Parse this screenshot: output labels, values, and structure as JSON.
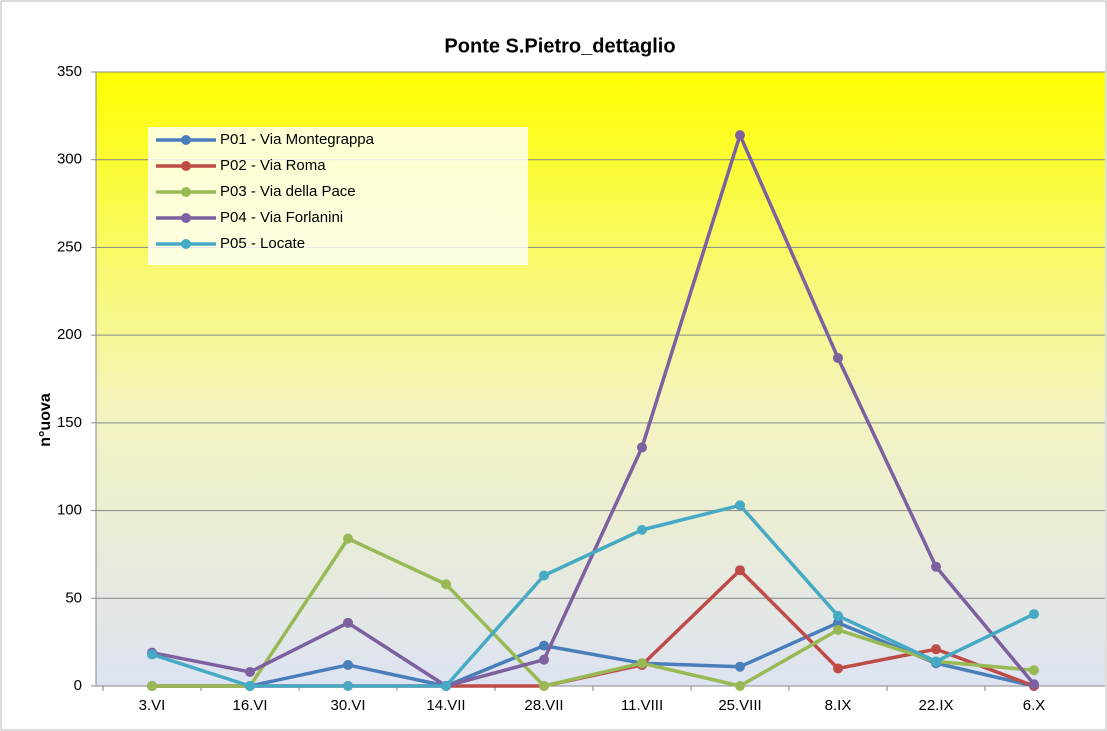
{
  "chart_data": {
    "type": "line",
    "title": "Ponte S.Pietro_dettaglio",
    "y_label": "n°uova",
    "categories": [
      "3.VI",
      "16.VI",
      "30.VI",
      "14.VII",
      "28.VII",
      "11.VIII",
      "25.VIII",
      "8.IX",
      "22.IX",
      "6.X"
    ],
    "series": [
      {
        "name": "P01 - Via Montegrappa",
        "color": "#4a7ebb",
        "values": [
          0,
          0,
          12,
          0,
          23,
          13,
          11,
          36,
          13,
          0
        ]
      },
      {
        "name": "P02 - Via Roma",
        "color": "#be4b48",
        "values": [
          0,
          0,
          0,
          0,
          0,
          12,
          66,
          10,
          21,
          0
        ]
      },
      {
        "name": "P03 - Via della Pace",
        "color": "#98b954",
        "values": [
          0,
          0,
          84,
          58,
          0,
          13,
          0,
          32,
          14,
          9
        ]
      },
      {
        "name": "P04 - Via Forlanini",
        "color": "#7d60a0",
        "values": [
          19,
          8,
          36,
          0,
          15,
          136,
          314,
          187,
          68,
          1
        ]
      },
      {
        "name": "P05 - Locate",
        "color": "#46aac5",
        "values": [
          18,
          0,
          0,
          0,
          63,
          89,
          103,
          40,
          14,
          41
        ]
      }
    ],
    "ylim": [
      0,
      350
    ],
    "yticks": [
      0,
      50,
      100,
      150,
      200,
      250,
      300,
      350
    ],
    "grid": true,
    "legend": "upper left"
  }
}
